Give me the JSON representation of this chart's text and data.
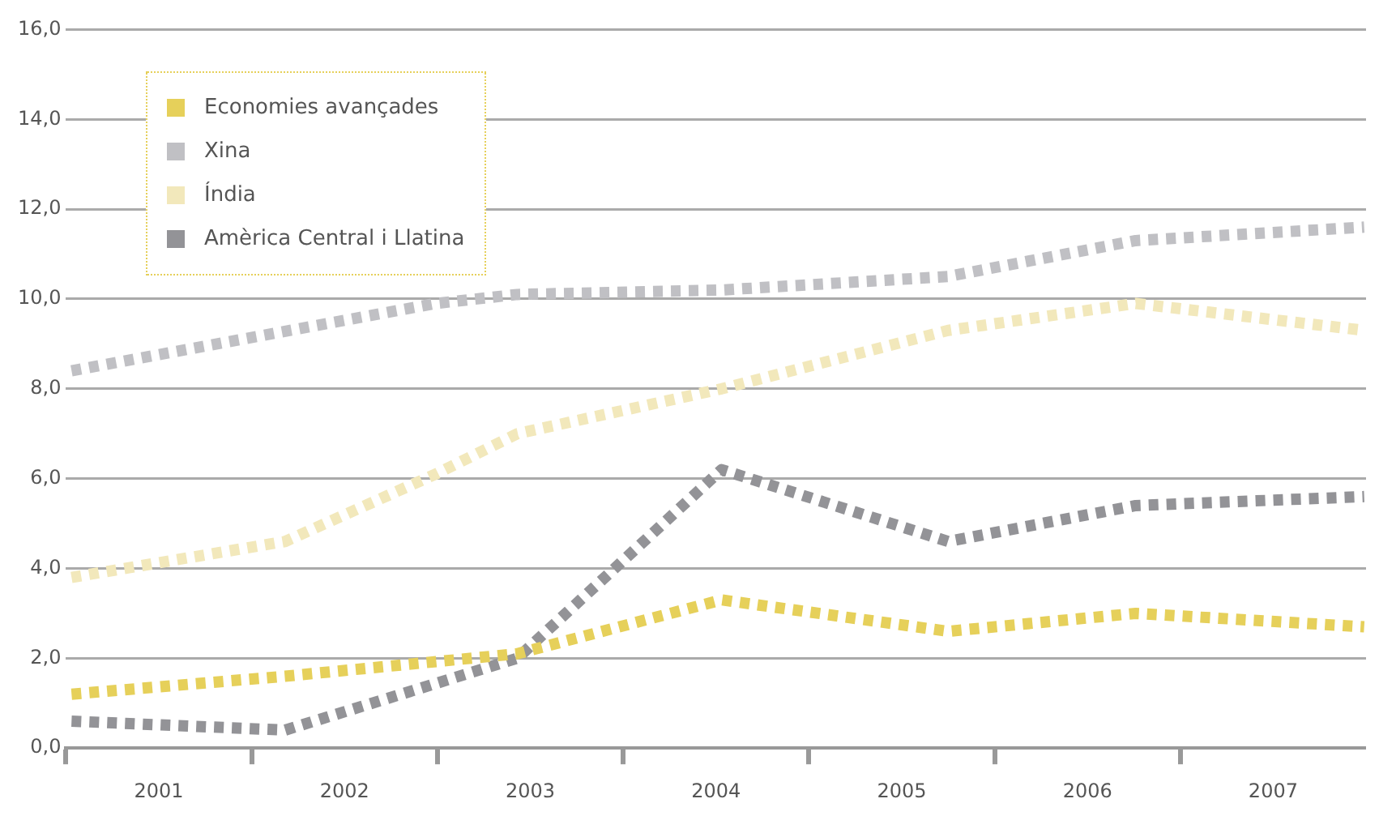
{
  "chart_data": {
    "type": "line",
    "series": [
      {
        "name": "Economies avançades",
        "color": "#e6d05a",
        "x": [
          2000.53,
          2001.68,
          2002.93,
          2004.03,
          2005.25,
          2006.26,
          2007.49
        ],
        "values": [
          1.2,
          1.6,
          2.1,
          3.3,
          2.6,
          3.0,
          2.7
        ]
      },
      {
        "name": "Xina",
        "color": "#c0c0c4",
        "x": [
          2000.53,
          2002.49,
          2002.93,
          2004.03,
          2005.25,
          2006.26,
          2007.49
        ],
        "values": [
          8.4,
          9.9,
          10.1,
          10.2,
          10.5,
          11.3,
          11.6
        ]
      },
      {
        "name": "Índia",
        "color": "#f2e8bb",
        "x": [
          2000.53,
          2001.68,
          2002.49,
          2002.93,
          2004.03,
          2005.25,
          2006.26,
          2007.49
        ],
        "values": [
          3.8,
          4.6,
          6.1,
          7.0,
          8.0,
          9.3,
          9.9,
          9.3
        ]
      },
      {
        "name": "Amèrica Central i Llatina",
        "color": "#939397",
        "x": [
          2000.53,
          2001.68,
          2002.93,
          2004.03,
          2005.25,
          2006.26,
          2007.49
        ],
        "values": [
          0.6,
          0.4,
          2.0,
          6.2,
          4.6,
          5.4,
          5.6
        ]
      }
    ],
    "xlim": [
      2000.5,
      2007.5
    ],
    "xticks": [
      {
        "value": 2000.5,
        "label": null
      },
      2001,
      {
        "value": 2001.5,
        "label": null
      },
      2002,
      {
        "value": 2002.5,
        "label": null
      },
      2003,
      {
        "value": 2003.5,
        "label": null
      },
      2004,
      {
        "value": 2004.5,
        "label": null
      },
      2005,
      {
        "value": 2005.5,
        "label": null
      },
      2006,
      {
        "value": 2006.5,
        "label": null
      },
      2007
    ],
    "ylim": [
      0,
      16
    ],
    "yticks": [
      {
        "value": 0,
        "label": "0,0"
      },
      {
        "value": 2,
        "label": "2,0"
      },
      {
        "value": 4,
        "label": "4,0"
      },
      {
        "value": 6,
        "label": "6,0"
      },
      {
        "value": 8,
        "label": "8,0"
      },
      {
        "value": 10,
        "label": "10,0"
      },
      {
        "value": 12,
        "label": "12,0"
      },
      {
        "value": 14,
        "label": "14,0"
      },
      {
        "value": 16,
        "label": "16,0"
      }
    ],
    "grid": "y",
    "legend": "top left",
    "line_style": "dotted",
    "marker": "none"
  }
}
